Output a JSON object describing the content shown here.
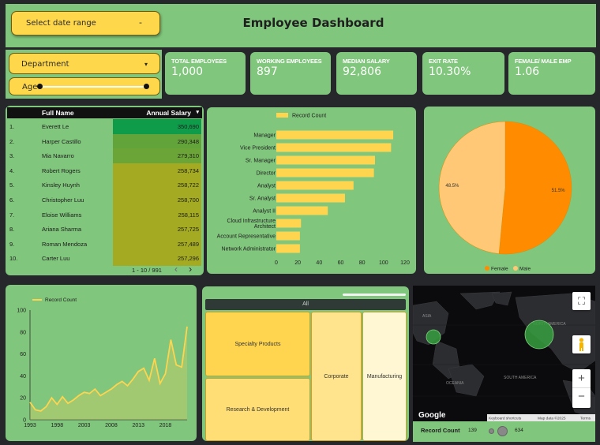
{
  "header": {
    "title": "Employee Dashboard",
    "date_range_label": "Select date range",
    "date_range_arrow": "-"
  },
  "filters": {
    "department_label": "Department",
    "department_arrow": "▾",
    "age_label": "Age"
  },
  "kpis": [
    {
      "label": "TOTAL EMPLOYEES",
      "value": "1,000"
    },
    {
      "label": "WORKING EMPLOYEES",
      "value": "897"
    },
    {
      "label": "MEDIAN SALARY",
      "value": "92,806"
    },
    {
      "label": "EXIT RATE",
      "value": "10.30%"
    },
    {
      "label": "FEMALE/ MALE EMP",
      "value": "1.06"
    }
  ],
  "salary_table": {
    "col_name": "Full Name",
    "col_salary": "Annual Salary",
    "sort_icon": "▾",
    "rows": [
      {
        "n": "1.",
        "name": "Everett Le",
        "salary": "350,690",
        "color": "#0e9b4a"
      },
      {
        "n": "2.",
        "name": "Harper Castillo",
        "salary": "290,348",
        "color": "#62a33a"
      },
      {
        "n": "3.",
        "name": "Mia Navarro",
        "salary": "279,310",
        "color": "#6ba437"
      },
      {
        "n": "4.",
        "name": "Robert Rogers",
        "salary": "258,734",
        "color": "#a4ab22"
      },
      {
        "n": "5.",
        "name": "Kinsley Huynh",
        "salary": "258,722",
        "color": "#a4ab22"
      },
      {
        "n": "6.",
        "name": "Christopher Luu",
        "salary": "258,700",
        "color": "#a4ab22"
      },
      {
        "n": "7.",
        "name": "Eloise Williams",
        "salary": "258,115",
        "color": "#a4ab22"
      },
      {
        "n": "8.",
        "name": "Ariana Sharma",
        "salary": "257,725",
        "color": "#a4ab22"
      },
      {
        "n": "9.",
        "name": "Roman Mendoza",
        "salary": "257,489",
        "color": "#a4ab22"
      },
      {
        "n": "10.",
        "name": "Carter Luu",
        "salary": "257,296",
        "color": "#a4ab22"
      }
    ],
    "pagination": "1 - 10 / 991",
    "prev": "‹",
    "next": "›"
  },
  "chart_data": [
    {
      "type": "bar",
      "orientation": "horizontal",
      "legend": "Record Count",
      "categories": [
        "Manager",
        "Vice President",
        "Sr. Manager",
        "Director",
        "Analyst",
        "Sr. Analyst",
        "Analyst II",
        "Cloud Infrastructure Architect",
        "Account Representative",
        "Network Administrator"
      ],
      "values": [
        109,
        107,
        92,
        91,
        72,
        64,
        48,
        23,
        22,
        22
      ],
      "xticks": [
        0,
        20,
        40,
        60,
        80,
        100,
        120
      ],
      "xlim": [
        0,
        120
      ],
      "color": "#ffd54f"
    },
    {
      "type": "pie",
      "labels": [
        "Female",
        "Male"
      ],
      "values": [
        51.5,
        48.5
      ],
      "value_labels": [
        "51.5%",
        "48.5%"
      ],
      "colors": [
        "#ff8c00",
        "#ffc876"
      ],
      "legend_position": "bottom"
    },
    {
      "type": "line",
      "legend": "Record Count",
      "x": [
        1993,
        1994,
        1995,
        1996,
        1997,
        1998,
        1999,
        2000,
        2001,
        2002,
        2003,
        2004,
        2005,
        2006,
        2007,
        2008,
        2009,
        2010,
        2011,
        2012,
        2013,
        2014,
        2015,
        2016,
        2017,
        2018,
        2019,
        2020,
        2021,
        2022
      ],
      "y": [
        16,
        9,
        8,
        12,
        20,
        14,
        21,
        15,
        18,
        22,
        25,
        24,
        28,
        22,
        25,
        28,
        32,
        35,
        31,
        37,
        44,
        47,
        36,
        56,
        33,
        42,
        73,
        50,
        48,
        85
      ],
      "xticks": [
        1993,
        1998,
        2003,
        2008,
        2013,
        2018
      ],
      "yticks": [
        0,
        20,
        40,
        60,
        80,
        100
      ],
      "ylim": [
        0,
        100
      ],
      "color": "#ffd54f"
    },
    {
      "type": "treemap",
      "header": "All",
      "items": [
        {
          "label": "Specialty Products",
          "color": "#ffd54f"
        },
        {
          "label": "Research & Development",
          "color": "#ffde75"
        },
        {
          "label": "Corporate",
          "color": "#ffe48d"
        },
        {
          "label": "Manufacturing",
          "color": "#fff6d3"
        }
      ]
    },
    {
      "type": "bubble_map",
      "legend_label": "Record Count",
      "legend_min": "139",
      "legend_max": "634",
      "region_labels": [
        "ASIA",
        "OCEANIA",
        "NORTH AMERICA",
        "SOUTH AMERICA"
      ],
      "attribution": [
        "Google",
        "Keyboard shortcuts",
        "Map data ©2025",
        "Terms"
      ]
    }
  ],
  "map_controls": {
    "fullscreen": "⛶",
    "zoom_in": "+",
    "zoom_out": "−"
  }
}
